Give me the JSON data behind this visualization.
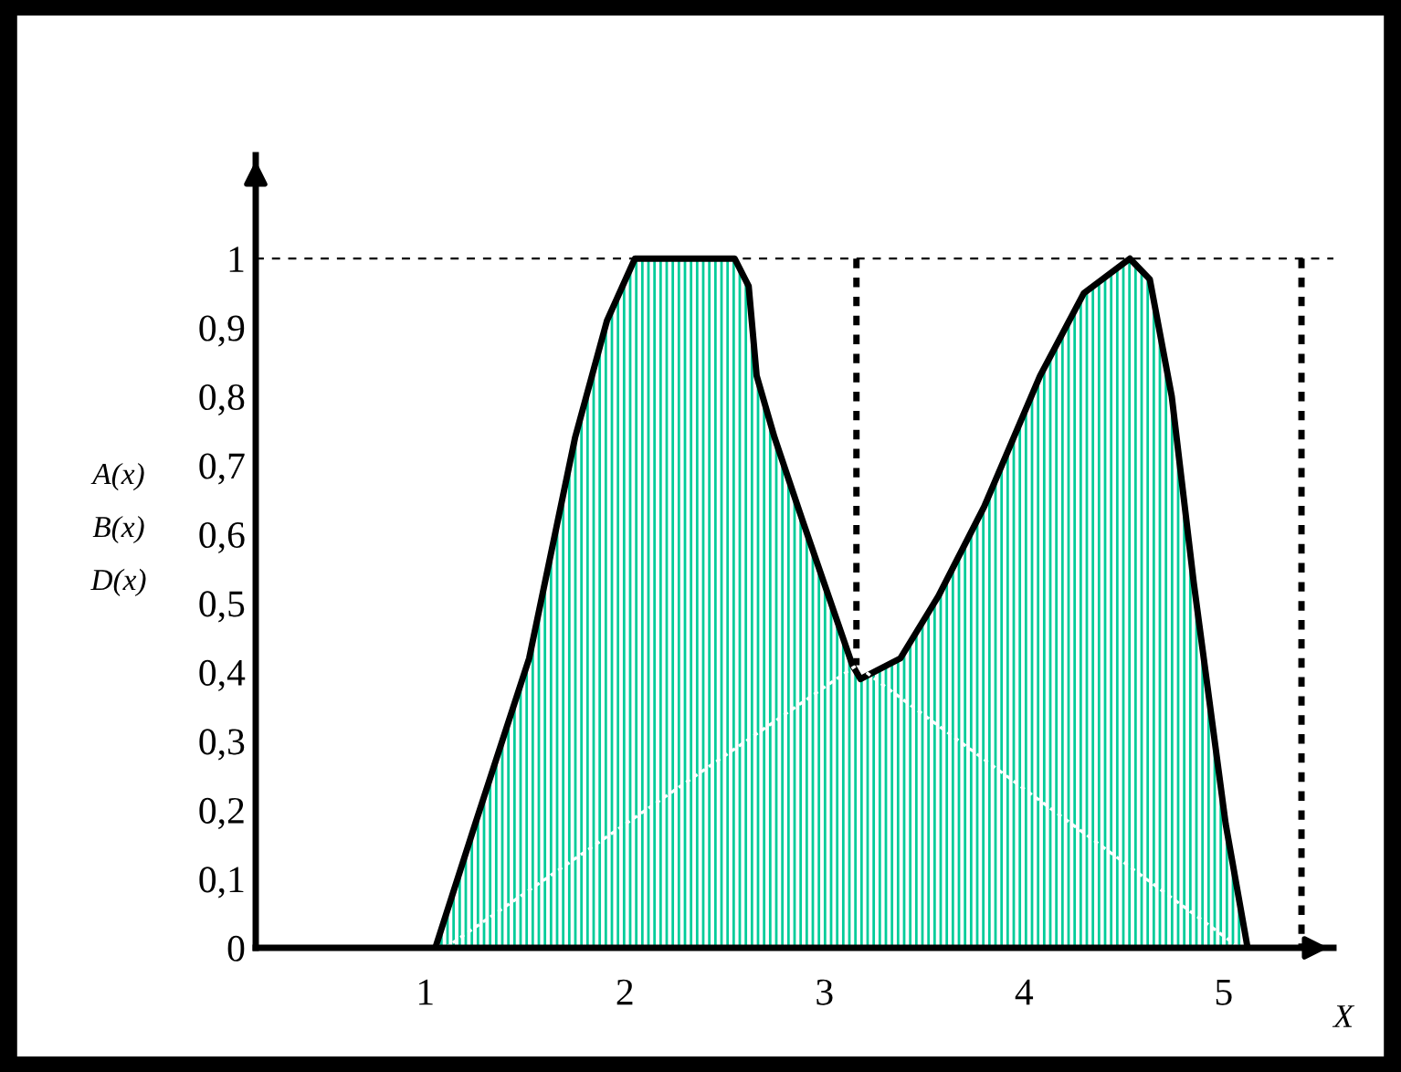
{
  "chart_data": {
    "type": "area",
    "xlabel": "X",
    "ylabel": "A(x)\nB(x)\nD(x)",
    "xlim": [
      0.15,
      5.55
    ],
    "ylim": [
      0,
      1.15
    ],
    "xticks": [
      1,
      2,
      3,
      4,
      5
    ],
    "yticks": [
      {
        "value": 0,
        "label": "0"
      },
      {
        "value": 0.1,
        "label": "0,1"
      },
      {
        "value": 0.2,
        "label": "0,2"
      },
      {
        "value": 0.3,
        "label": "0,3"
      },
      {
        "value": 0.4,
        "label": "0,4"
      },
      {
        "value": 0.5,
        "label": "0,5"
      },
      {
        "value": 0.6,
        "label": "0,6"
      },
      {
        "value": 0.7,
        "label": "0,7"
      },
      {
        "value": 0.8,
        "label": "0,8"
      },
      {
        "value": 0.9,
        "label": "0,9"
      },
      {
        "value": 1,
        "label": "1"
      }
    ],
    "grid": false,
    "legend": false,
    "series": [
      {
        "color": "#00cc99",
        "line_style": "solid",
        "x": [
          1.05,
          1.25,
          1.52,
          1.75,
          1.91,
          2.05,
          2.39,
          2.55,
          2.62,
          2.66,
          2.75,
          2.89,
          3.14,
          3.18,
          3.38,
          3.57,
          3.8,
          4.08,
          4.3,
          4.53,
          4.63,
          4.74,
          4.85,
          5.01,
          5.12
        ],
        "values": [
          0,
          0.18,
          0.42,
          0.74,
          0.91,
          1.0,
          1.0,
          1.0,
          0.96,
          0.83,
          0.74,
          0.62,
          0.41,
          0.39,
          0.42,
          0.51,
          0.64,
          0.83,
          0.95,
          1.0,
          0.97,
          0.8,
          0.53,
          0.18,
          0
        ]
      },
      {
        "type": "line",
        "color": "#ffffff",
        "line_style": "dotted",
        "x": [
          1.1,
          3.16,
          5.08
        ],
        "values": [
          0,
          0.41,
          0
        ]
      },
      {
        "type": "line",
        "color": "#000000",
        "line_style": "dotted",
        "x": [
          3.16,
          3.16
        ],
        "values": [
          1.0,
          0.41
        ]
      },
      {
        "type": "line",
        "color": "#000000",
        "line_style": "dotted",
        "x": [
          5.39,
          5.39
        ],
        "values": [
          1.0,
          0
        ]
      }
    ],
    "ref_lines": [
      {
        "axis": "y",
        "value": 1,
        "color": "#000000",
        "line_style": "dashed"
      }
    ]
  }
}
